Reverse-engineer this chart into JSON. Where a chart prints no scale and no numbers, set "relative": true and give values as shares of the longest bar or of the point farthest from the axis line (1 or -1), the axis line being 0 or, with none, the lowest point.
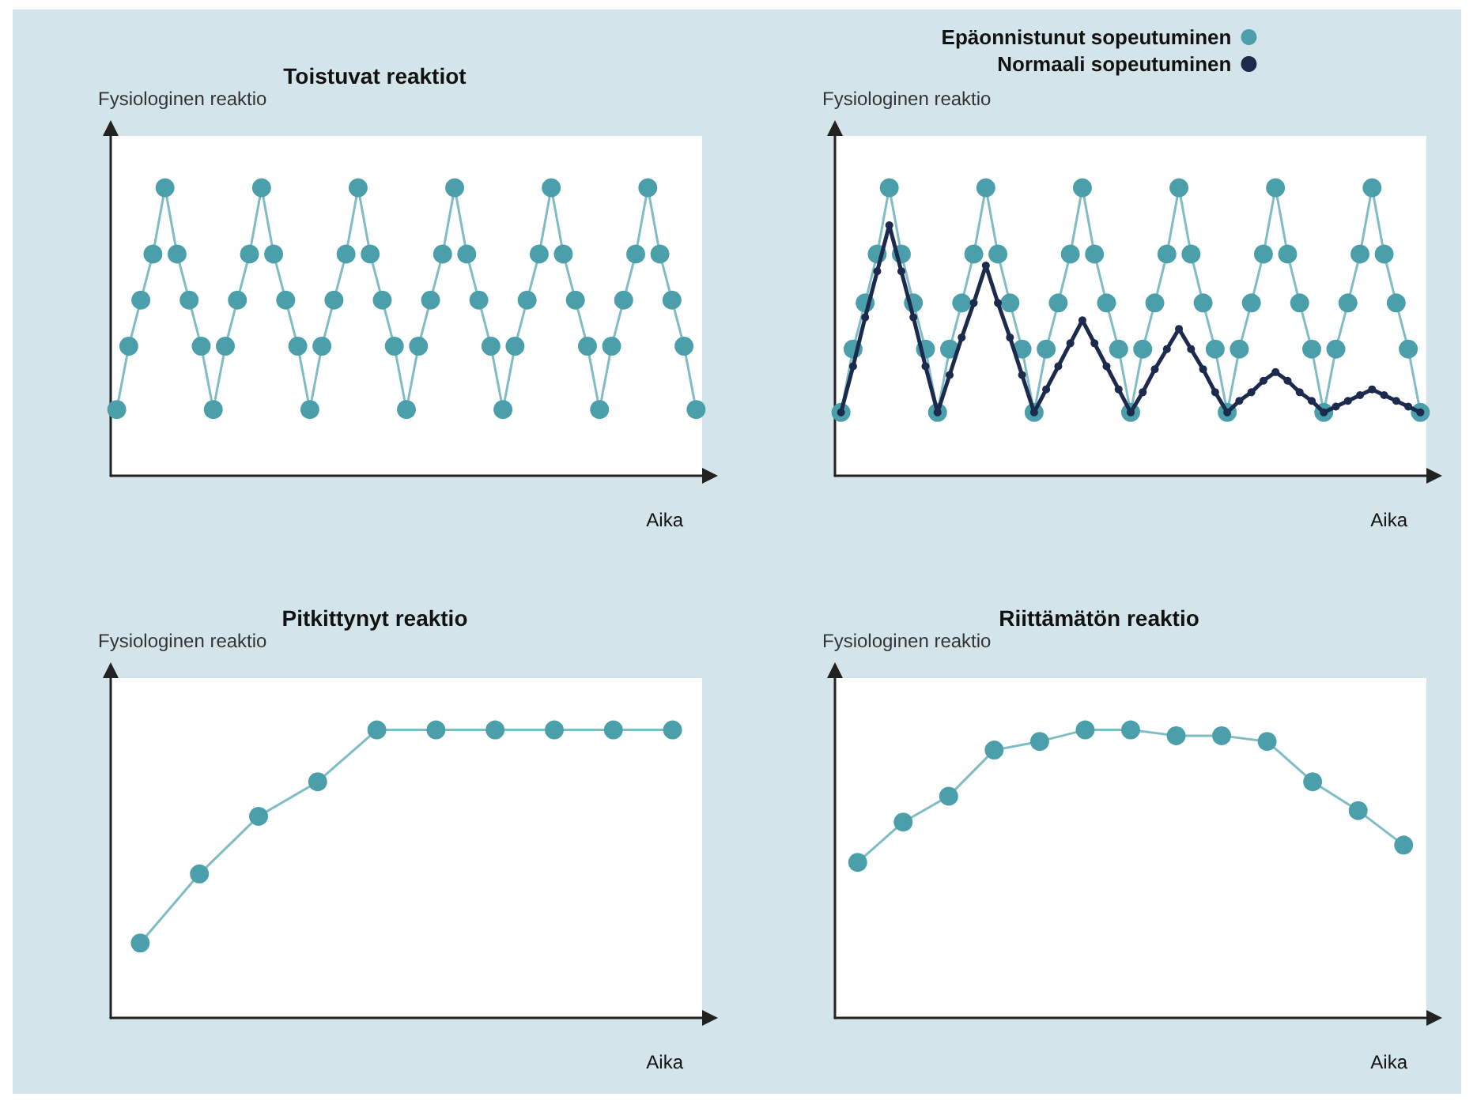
{
  "chart_data": [
    {
      "type": "line",
      "title": "Toistuvat reaktiot",
      "xlabel": "Aika",
      "ylabel": "Fysiologinen reaktio",
      "relative": true,
      "marker": "circle",
      "grid": false,
      "legend": false,
      "categories": [
        null,
        null,
        null,
        null,
        null,
        null,
        null,
        null,
        null,
        null,
        null,
        null,
        null,
        null,
        null,
        null,
        null,
        null,
        null,
        null,
        null,
        null,
        null,
        null,
        null,
        null,
        null,
        null,
        null,
        null,
        null,
        null,
        null,
        null,
        null,
        null,
        null,
        null,
        null,
        null,
        null,
        null,
        null,
        null,
        null,
        null,
        null,
        null,
        null
      ],
      "series": [
        {
          "color": "#4a9fab",
          "values": [
            0.23,
            0.45,
            0.61,
            0.77,
            1,
            0.77,
            0.61,
            0.45,
            0.23,
            0.45,
            0.61,
            0.77,
            1,
            0.77,
            0.61,
            0.45,
            0.23,
            0.45,
            0.61,
            0.77,
            1,
            0.77,
            0.61,
            0.45,
            0.23,
            0.45,
            0.61,
            0.77,
            1,
            0.77,
            0.61,
            0.45,
            0.23,
            0.45,
            0.61,
            0.77,
            1,
            0.77,
            0.61,
            0.45,
            0.23,
            0.45,
            0.61,
            0.77,
            1,
            0.77,
            0.61,
            0.45,
            0.23
          ]
        }
      ]
    },
    {
      "type": "line",
      "xlabel": "Aika",
      "ylabel": "Fysiologinen reaktio",
      "relative": true,
      "marker": "circle",
      "grid": false,
      "legend": "top",
      "categories": [
        null,
        null,
        null,
        null,
        null,
        null,
        null,
        null,
        null,
        null,
        null,
        null,
        null,
        null,
        null,
        null,
        null,
        null,
        null,
        null,
        null,
        null,
        null,
        null,
        null,
        null,
        null,
        null,
        null,
        null,
        null,
        null,
        null,
        null,
        null,
        null,
        null,
        null,
        null,
        null,
        null,
        null,
        null,
        null,
        null,
        null,
        null,
        null,
        null
      ],
      "series": [
        {
          "name": "Epäonnistunut sopeutuminen",
          "color": "#4a9fab",
          "values": [
            0.22,
            0.44,
            0.6,
            0.77,
            1,
            0.77,
            0.6,
            0.44,
            0.22,
            0.44,
            0.6,
            0.77,
            1,
            0.77,
            0.6,
            0.44,
            0.22,
            0.44,
            0.6,
            0.77,
            1,
            0.77,
            0.6,
            0.44,
            0.22,
            0.44,
            0.6,
            0.77,
            1,
            0.77,
            0.6,
            0.44,
            0.22,
            0.44,
            0.6,
            0.77,
            1,
            0.77,
            0.6,
            0.44,
            0.22,
            0.44,
            0.6,
            0.77,
            1,
            0.77,
            0.6,
            0.44,
            0.22
          ]
        },
        {
          "name": "Normaali sopeutuminen",
          "color": "#1c2a4e",
          "values": [
            0.22,
            0.38,
            0.55,
            0.71,
            0.87,
            0.71,
            0.55,
            0.38,
            0.22,
            0.35,
            0.48,
            0.6,
            0.73,
            0.6,
            0.48,
            0.35,
            0.22,
            0.3,
            0.38,
            0.46,
            0.54,
            0.46,
            0.38,
            0.3,
            0.22,
            0.29,
            0.37,
            0.44,
            0.51,
            0.44,
            0.37,
            0.29,
            0.22,
            0.26,
            0.29,
            0.33,
            0.36,
            0.33,
            0.29,
            0.26,
            0.22,
            0.24,
            0.26,
            0.28,
            0.3,
            0.28,
            0.26,
            0.24,
            0.22
          ]
        }
      ]
    },
    {
      "type": "line",
      "title": "Pitkittynyt reaktio",
      "xlabel": "Aika",
      "ylabel": "Fysiologinen reaktio",
      "relative": true,
      "marker": "circle",
      "grid": false,
      "legend": false,
      "categories": [
        null,
        null,
        null,
        null,
        null,
        null,
        null,
        null,
        null,
        null
      ],
      "series": [
        {
          "color": "#4a9fab",
          "values": [
            0.26,
            0.5,
            0.7,
            0.82,
            1,
            1,
            1,
            1,
            1,
            1
          ]
        }
      ]
    },
    {
      "type": "line",
      "title": "Riittämätön reaktio",
      "xlabel": "Aika",
      "ylabel": "Fysiologinen reaktio",
      "relative": true,
      "marker": "circle",
      "grid": false,
      "legend": false,
      "categories": [
        null,
        null,
        null,
        null,
        null,
        null,
        null,
        null,
        null,
        null,
        null,
        null,
        null
      ],
      "series": [
        {
          "color": "#4a9fab",
          "values": [
            0.54,
            0.68,
            0.77,
            0.93,
            0.96,
            1,
            1,
            0.98,
            0.98,
            0.96,
            0.82,
            0.72,
            0.6
          ]
        }
      ]
    }
  ]
}
